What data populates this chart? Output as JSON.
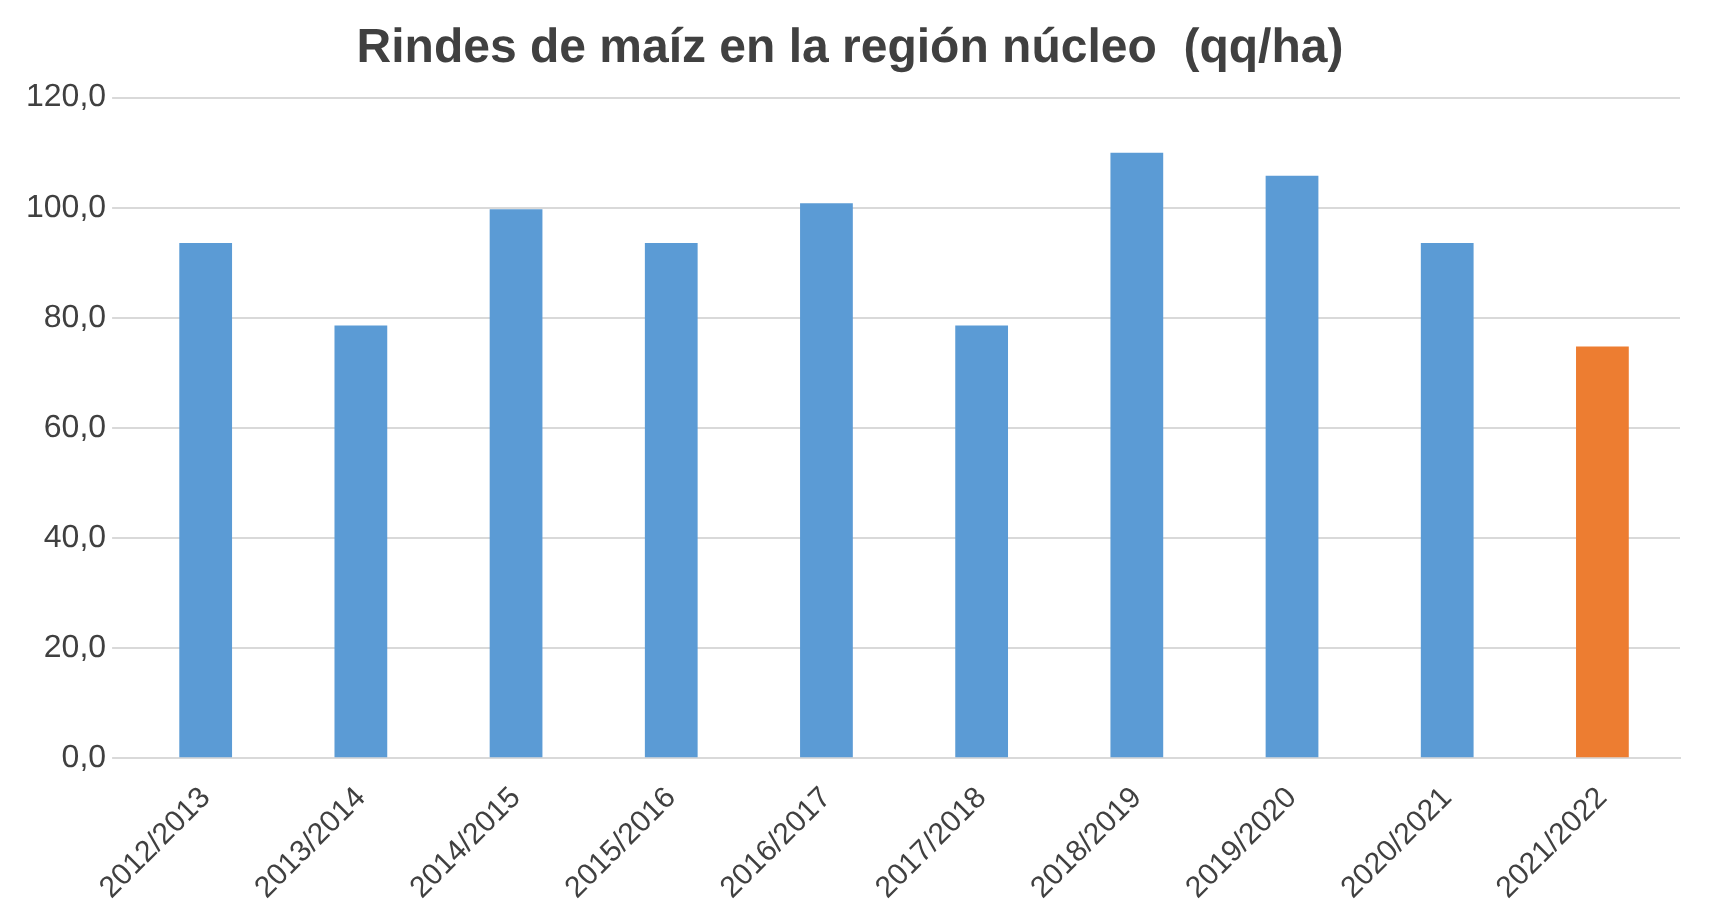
{
  "chart_data": {
    "type": "bar",
    "title": "Rindes de maíz en la región núcleo  (qq/ha)",
    "categories": [
      "2012/2013",
      "2013/2014",
      "2014/2015",
      "2015/2016",
      "2016/2017",
      "2017/2018",
      "2018/2019",
      "2019/2020",
      "2020/2021",
      "2021/2022"
    ],
    "values": [
      93.6,
      78.6,
      99.7,
      93.6,
      100.8,
      78.6,
      110,
      105.8,
      93.6,
      74.8
    ],
    "colors": [
      "#5b9bd5",
      "#5b9bd5",
      "#5b9bd5",
      "#5b9bd5",
      "#5b9bd5",
      "#5b9bd5",
      "#5b9bd5",
      "#5b9bd5",
      "#5b9bd5",
      "#ed7d31"
    ],
    "ylim": [
      0,
      120
    ],
    "yticks": [
      {
        "value": 0,
        "label": "0,0"
      },
      {
        "value": 20,
        "label": "20,0"
      },
      {
        "value": 40,
        "label": "40,0"
      },
      {
        "value": 60,
        "label": "60,0"
      },
      {
        "value": 80,
        "label": "80,0"
      },
      {
        "value": 100,
        "label": "100,0"
      },
      {
        "value": 120,
        "label": "120,0"
      }
    ],
    "grid": "y",
    "legend": false
  }
}
